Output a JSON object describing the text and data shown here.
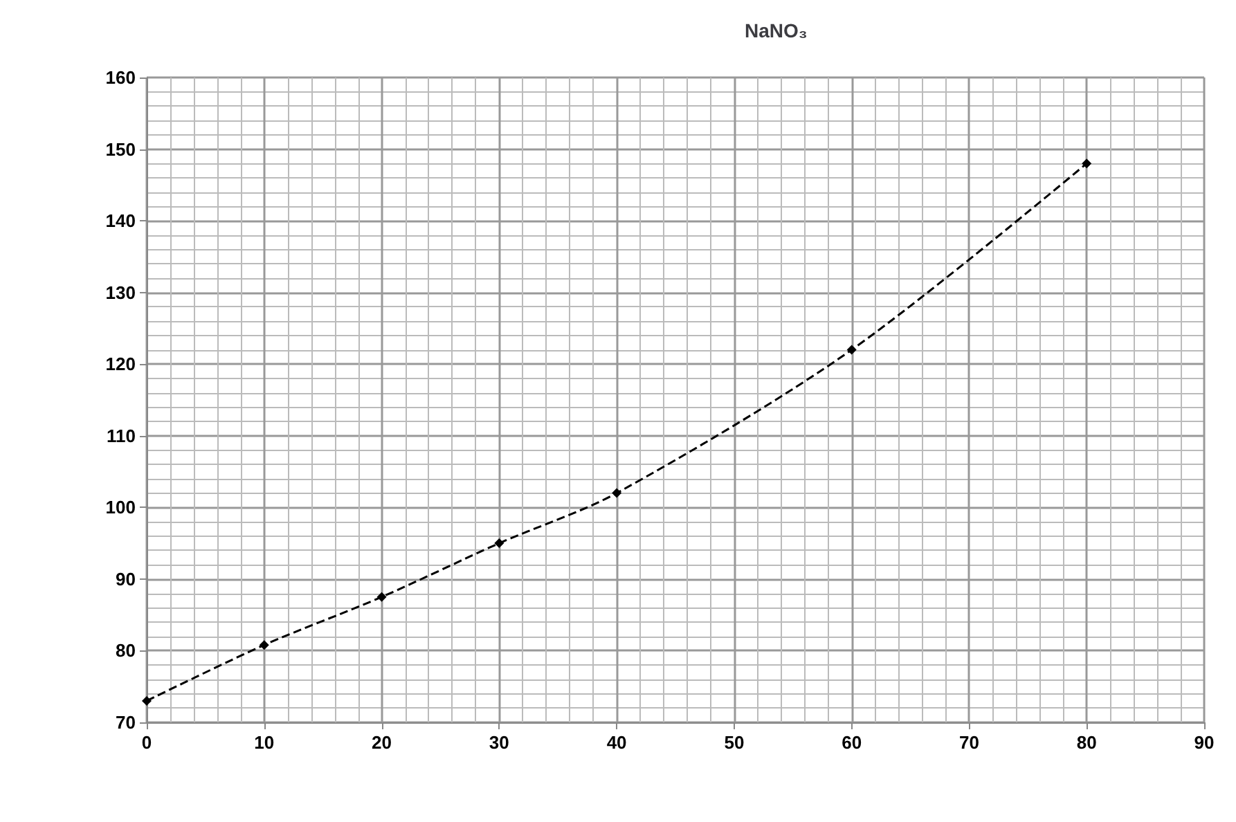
{
  "chart_data": {
    "type": "line",
    "title": "NaNO₃",
    "x": [
      0,
      10,
      20,
      30,
      40,
      60,
      80
    ],
    "series": [
      {
        "color": "#000000",
        "values": [
          73,
          80.8,
          87.5,
          95,
          102,
          122,
          148
        ]
      }
    ],
    "xlim": [
      0,
      90
    ],
    "xticks": [
      0,
      10,
      20,
      30,
      40,
      50,
      60,
      70,
      80,
      90
    ],
    "ylim": [
      70,
      160
    ],
    "yticks": [
      70,
      80,
      90,
      100,
      110,
      120,
      130,
      140,
      150,
      160
    ],
    "grid": true,
    "marker": "diamond",
    "line_style": "dashed"
  }
}
